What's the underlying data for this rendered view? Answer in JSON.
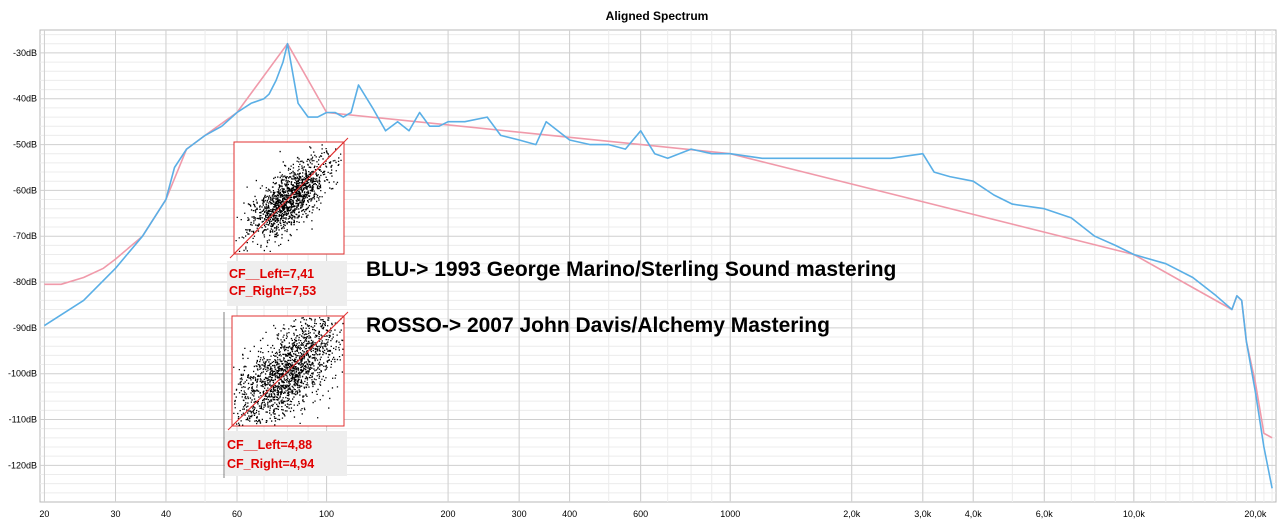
{
  "chart_data": {
    "type": "line",
    "title": "Aligned Spectrum",
    "xlabel": "",
    "ylabel": "",
    "x_scale": "log",
    "xlim": [
      19.5,
      22500
    ],
    "ylim": [
      -128,
      -25
    ],
    "grid": true,
    "y_ticks": [
      {
        "v": -30,
        "label": "-30dB"
      },
      {
        "v": -40,
        "label": "-40dB"
      },
      {
        "v": -50,
        "label": "-50dB"
      },
      {
        "v": -60,
        "label": "-60dB"
      },
      {
        "v": -70,
        "label": "-70dB"
      },
      {
        "v": -80,
        "label": "-80dB"
      },
      {
        "v": -90,
        "label": "-90dB"
      },
      {
        "v": -100,
        "label": "-100dB"
      },
      {
        "v": -110,
        "label": "-110dB"
      },
      {
        "v": -120,
        "label": "-120dB"
      }
    ],
    "x_ticks": [
      {
        "v": 20,
        "label": "20"
      },
      {
        "v": 30,
        "label": "30"
      },
      {
        "v": 40,
        "label": "40"
      },
      {
        "v": 60,
        "label": "60"
      },
      {
        "v": 100,
        "label": "100"
      },
      {
        "v": 200,
        "label": "200"
      },
      {
        "v": 300,
        "label": "300"
      },
      {
        "v": 400,
        "label": "400"
      },
      {
        "v": 600,
        "label": "600"
      },
      {
        "v": 1000,
        "label": "1000"
      },
      {
        "v": 2000,
        "label": "2,0k"
      },
      {
        "v": 3000,
        "label": "3,0k"
      },
      {
        "v": 4000,
        "label": "4,0k"
      },
      {
        "v": 6000,
        "label": "6,0k"
      },
      {
        "v": 10000,
        "label": "10,0k"
      },
      {
        "v": 20000,
        "label": "20,0k"
      }
    ],
    "series": [
      {
        "color": "#5aafe6",
        "x": [
          20,
          25,
          30,
          35,
          40,
          42,
          45,
          50,
          55,
          60,
          65,
          70,
          72,
          75,
          78,
          80,
          85,
          90,
          95,
          100,
          105,
          110,
          115,
          120,
          130,
          140,
          150,
          160,
          170,
          180,
          190,
          200,
          220,
          250,
          270,
          300,
          330,
          350,
          400,
          450,
          500,
          550,
          600,
          650,
          700,
          800,
          900,
          1000,
          1200,
          1500,
          2000,
          2500,
          3000,
          3200,
          3500,
          4000,
          4500,
          5000,
          6000,
          7000,
          8000,
          9000,
          10000,
          12000,
          14000,
          16000,
          17500,
          18000,
          18500,
          19000,
          20000,
          21000,
          22000
        ],
        "y": [
          -89.5,
          -84,
          -77,
          -70,
          -62,
          -55,
          -51,
          -48,
          -46,
          -43,
          -41,
          -40,
          -39,
          -36,
          -32,
          -28,
          -41,
          -44,
          -44,
          -43,
          -43,
          -44,
          -43,
          -37,
          -42,
          -47,
          -45,
          -47,
          -43,
          -46,
          -46,
          -45,
          -45,
          -44,
          -48,
          -49,
          -50,
          -45,
          -49,
          -50,
          -50,
          -51,
          -47,
          -52,
          -53,
          -51,
          -52,
          -52,
          -53,
          -53,
          -53,
          -53,
          -52,
          -56,
          -57,
          -58,
          -61,
          -63,
          -64,
          -66,
          -70,
          -72,
          -74,
          -76,
          -79,
          -83,
          -86,
          -83,
          -84,
          -93,
          -104,
          -116,
          -125
        ]
      },
      {
        "color": "#f09aaa",
        "x": [
          20,
          22,
          25,
          28,
          30,
          35,
          40,
          45,
          50,
          60,
          80,
          100,
          1000,
          10000,
          17500,
          18000,
          18500,
          19000,
          20000,
          21000,
          22000
        ],
        "y": [
          -80.5,
          -80.5,
          -79,
          -77,
          -75,
          -70,
          -62,
          -51,
          -48,
          -43,
          -28,
          -43,
          -52,
          -74,
          -86,
          -83,
          -84,
          -93,
          -102,
          -113,
          -114
        ]
      }
    ],
    "annotations": {
      "blu": "BLU-> 1993 George Marino/Sterling Sound mastering",
      "rosso": "ROSSO-> 2007 John Davis/Alchemy Mastering",
      "cf1_left": "CF__Left=7,41",
      "cf1_right": "CF_Right=7,53",
      "cf2_left": "CF__Left=4,88",
      "cf2_right": "CF_Right=4,94"
    }
  }
}
